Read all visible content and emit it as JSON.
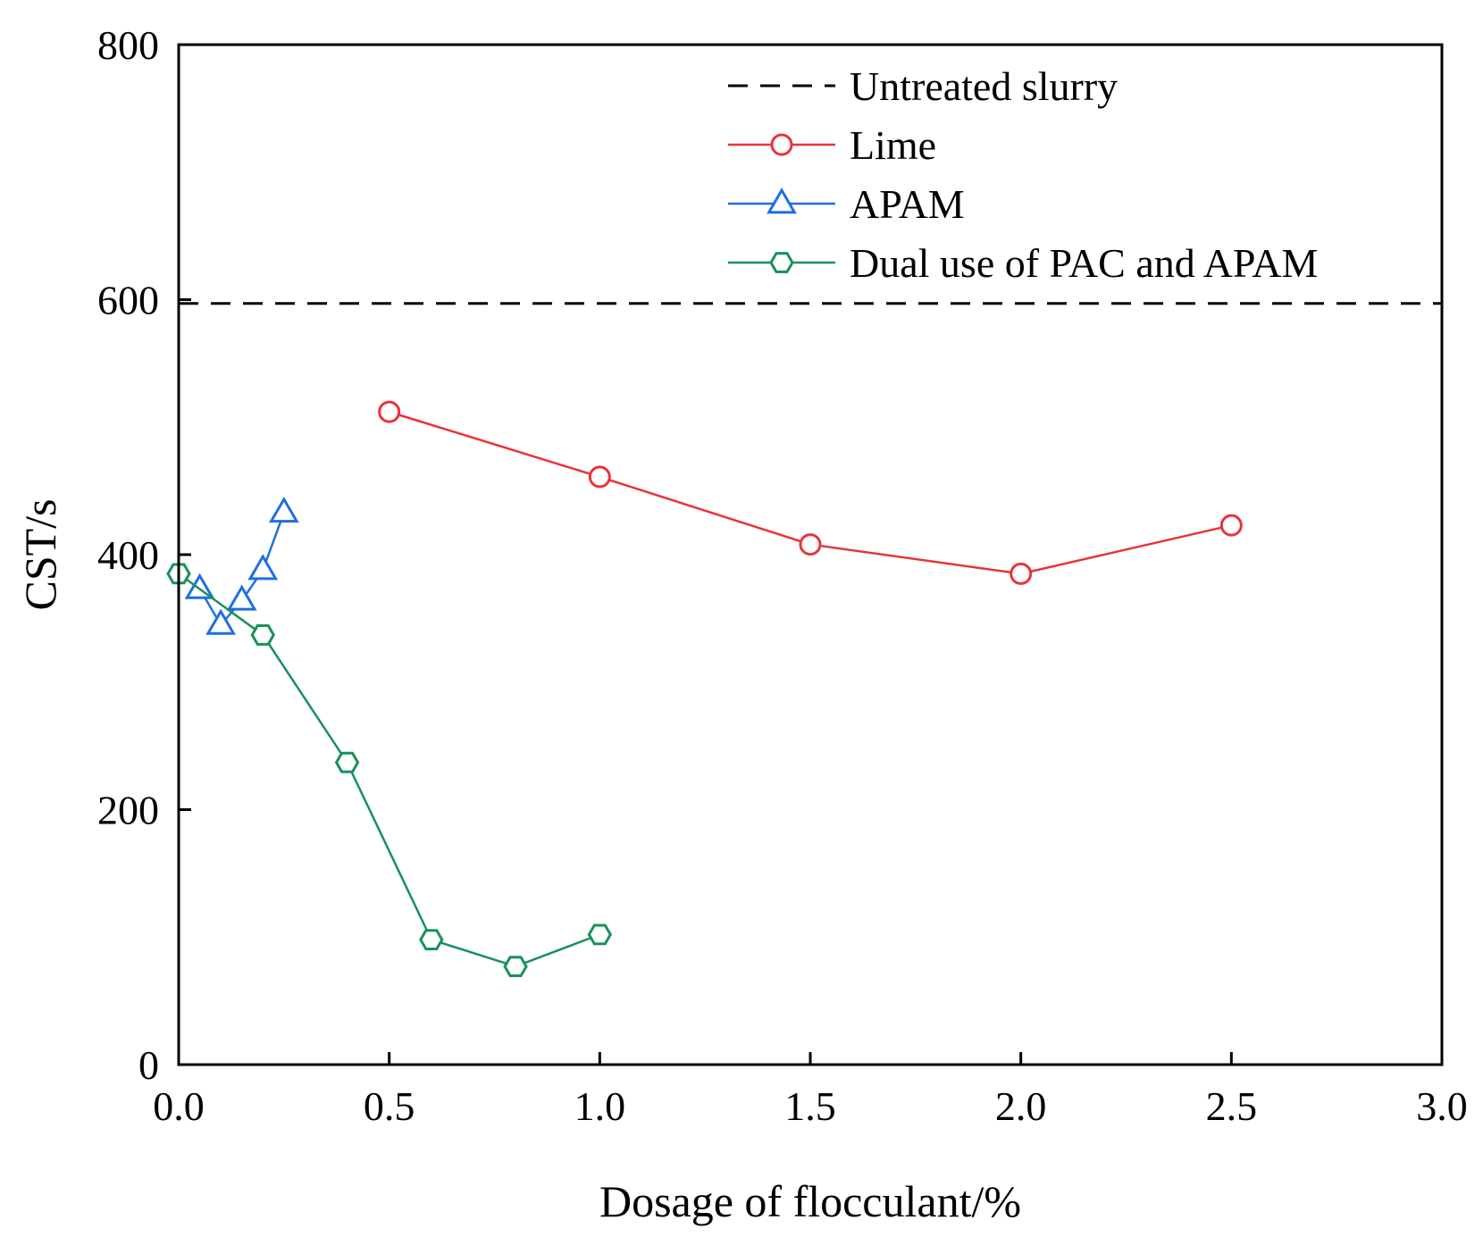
{
  "chart_data": {
    "type": "line",
    "title": "",
    "xlabel": "Dosage of flocculant/%",
    "ylabel": "CST/s",
    "xlim": [
      0.0,
      3.0
    ],
    "ylim": [
      0,
      800
    ],
    "xticks": [
      0.0,
      0.5,
      1.0,
      1.5,
      2.0,
      2.5,
      3.0
    ],
    "xtick_labels": [
      "0.0",
      "0.5",
      "1.0",
      "1.5",
      "2.0",
      "2.5",
      "3.0"
    ],
    "yticks": [
      0,
      200,
      400,
      600,
      800
    ],
    "ytick_labels": [
      "0",
      "200",
      "400",
      "600",
      "800"
    ],
    "grid": false,
    "legend_position": "top-right",
    "series": [
      {
        "name": "Untreated slurry",
        "style": "dashed",
        "color": "#000000",
        "marker": "none",
        "x": [
          0.0,
          3.0
        ],
        "y": [
          597,
          597
        ]
      },
      {
        "name": "Lime",
        "style": "solid",
        "color": "#e8333a",
        "marker": "circle",
        "x": [
          0.5,
          1.0,
          1.5,
          2.0,
          2.5
        ],
        "y": [
          512,
          461,
          408,
          385,
          423
        ]
      },
      {
        "name": "APAM",
        "style": "solid",
        "color": "#1f6fe0",
        "marker": "triangle",
        "x": [
          0.05,
          0.1,
          0.15,
          0.2,
          0.25
        ],
        "y": [
          373,
          345,
          364,
          388,
          433
        ]
      },
      {
        "name": "Dual use of PAC and APAM",
        "style": "solid",
        "color": "#17915a",
        "marker": "hexagon",
        "x": [
          0.0,
          0.2,
          0.4,
          0.6,
          0.8,
          1.0
        ],
        "y": [
          385,
          337,
          237,
          98,
          77,
          102
        ]
      }
    ]
  }
}
